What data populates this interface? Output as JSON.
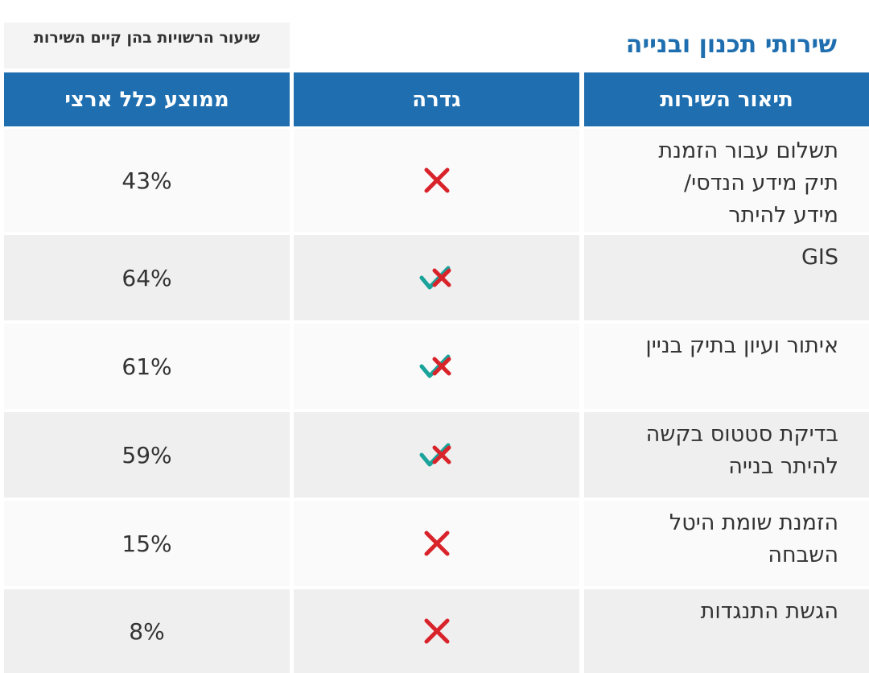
{
  "header": {
    "title": "שירותי תכנון ובנייה",
    "subtitle": "שיעור הרשויות בהן קיים השירות"
  },
  "table": {
    "columns": [
      "תיאור השירות",
      "גדרה",
      "ממוצע כלל ארצי"
    ],
    "rows": [
      {
        "description": "תשלום עבור הזמנת תיק מידע הנדסי/ מידע להיתר",
        "icon": "cross",
        "average": "43%"
      },
      {
        "description": "GIS",
        "icon": "check-cross",
        "average": "64%"
      },
      {
        "description": "איתור ועיון בתיק בניין",
        "icon": "check-cross",
        "average": "61%"
      },
      {
        "description": "בדיקת סטטוס בקשה להיתר בנייה",
        "icon": "check-cross",
        "average": "59%"
      },
      {
        "description": "הזמנת שומת היטל השבחה",
        "icon": "cross",
        "average": "15%"
      },
      {
        "description": "הגשת התנגדות",
        "icon": "cross",
        "average": "8%"
      }
    ]
  }
}
